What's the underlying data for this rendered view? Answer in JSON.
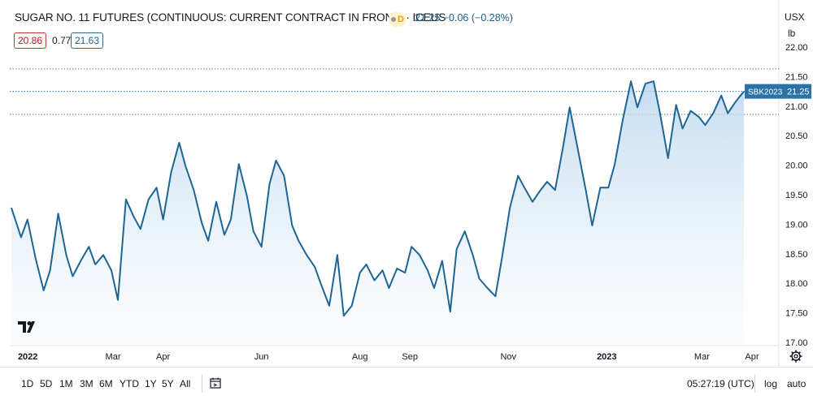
{
  "header": {
    "title": "SUGAR NO. 11 FUTURES (CONTINUOUS: CURRENT CONTRACT IN FRONT) · ICEUS",
    "interval_badge": "D",
    "quote": "21.25 −0.06 (−0.28%)",
    "bid": "20.86",
    "spread": "0.77",
    "ask": "21.63",
    "currency": "USX",
    "unit": "lb"
  },
  "toolbar": {
    "ranges": [
      "1D",
      "5D",
      "1M",
      "3M",
      "6M",
      "YTD",
      "1Y",
      "5Y",
      "All"
    ],
    "time": "05:27:19 (UTC)",
    "log_label": "log",
    "auto_label": "auto"
  },
  "colors": {
    "line": "#1f6594",
    "fill": "#cfe3f3",
    "label_bg": "#2b72a6"
  },
  "chart_data": {
    "type": "area",
    "symbol_label": "SBK2023",
    "last_price_label": "21.25",
    "x_tick_labels": [
      "2022",
      "Mar",
      "Apr",
      "Jun",
      "Aug",
      "Sep",
      "Nov",
      "2023",
      "Mar",
      "Apr"
    ],
    "y_tick_labels": [
      "17.00",
      "17.50",
      "18.00",
      "18.50",
      "19.00",
      "19.50",
      "20.00",
      "20.50",
      "21.00",
      "21.50",
      "22.00"
    ],
    "ylim": [
      17.0,
      22.0
    ],
    "reference_lines": [
      21.63,
      21.25,
      20.86
    ],
    "x": [
      "2021-12-28",
      "2022-01-03",
      "2022-01-07",
      "2022-01-12",
      "2022-01-17",
      "2022-01-21",
      "2022-01-26",
      "2022-01-31",
      "2022-02-04",
      "2022-02-09",
      "2022-02-14",
      "2022-02-18",
      "2022-02-23",
      "2022-02-28",
      "2022-03-04",
      "2022-03-09",
      "2022-03-14",
      "2022-03-18",
      "2022-03-23",
      "2022-03-28",
      "2022-04-01",
      "2022-04-06",
      "2022-04-11",
      "2022-04-15",
      "2022-04-20",
      "2022-04-25",
      "2022-04-29",
      "2022-05-04",
      "2022-05-09",
      "2022-05-13",
      "2022-05-18",
      "2022-05-23",
      "2022-05-27",
      "2022-06-01",
      "2022-06-06",
      "2022-06-10",
      "2022-06-15",
      "2022-06-20",
      "2022-06-24",
      "2022-06-29",
      "2022-07-04",
      "2022-07-08",
      "2022-07-13",
      "2022-07-18",
      "2022-07-22",
      "2022-07-27",
      "2022-08-01",
      "2022-08-05",
      "2022-08-10",
      "2022-08-15",
      "2022-08-19",
      "2022-08-24",
      "2022-08-29",
      "2022-09-02",
      "2022-09-07",
      "2022-09-12",
      "2022-09-16",
      "2022-09-21",
      "2022-09-26",
      "2022-09-30",
      "2022-10-05",
      "2022-10-10",
      "2022-10-14",
      "2022-10-19",
      "2022-10-24",
      "2022-10-28",
      "2022-11-02",
      "2022-11-07",
      "2022-11-11",
      "2022-11-16",
      "2022-11-21",
      "2022-11-25",
      "2022-11-30",
      "2022-12-05",
      "2022-12-09",
      "2022-12-14",
      "2022-12-19",
      "2022-12-23",
      "2022-12-28",
      "2023-01-02",
      "2023-01-06",
      "2023-01-11",
      "2023-01-16",
      "2023-01-20",
      "2023-01-25",
      "2023-01-30",
      "2023-02-03",
      "2023-02-08",
      "2023-02-13",
      "2023-02-17",
      "2023-02-22",
      "2023-02-27",
      "2023-03-03",
      "2023-03-08",
      "2023-03-13",
      "2023-03-17",
      "2023-03-22",
      "2023-03-27"
    ],
    "values": [
      19.28,
      18.78,
      19.08,
      18.42,
      17.88,
      18.22,
      19.18,
      18.48,
      18.12,
      18.38,
      18.62,
      18.32,
      18.48,
      18.22,
      17.72,
      19.42,
      19.12,
      18.92,
      19.42,
      19.62,
      19.08,
      19.88,
      20.38,
      19.98,
      19.58,
      19.02,
      18.72,
      19.38,
      18.82,
      19.08,
      20.02,
      19.48,
      18.88,
      18.62,
      19.68,
      20.08,
      19.82,
      18.98,
      18.72,
      18.48,
      18.28,
      17.98,
      17.62,
      18.48,
      17.45,
      17.62,
      18.18,
      18.32,
      18.05,
      18.22,
      17.92,
      18.25,
      18.18,
      18.62,
      18.48,
      18.22,
      17.92,
      18.38,
      17.52,
      18.58,
      18.88,
      18.48,
      18.08,
      17.92,
      17.78,
      18.42,
      19.28,
      19.82,
      19.62,
      19.38,
      19.58,
      19.72,
      19.58,
      20.32,
      20.98,
      20.28,
      19.58,
      18.98,
      19.62,
      19.62,
      20.02,
      20.78,
      21.42,
      20.98,
      21.38,
      21.42,
      20.88,
      20.12,
      21.02,
      20.62,
      20.92,
      20.82,
      20.68,
      20.88,
      21.18,
      20.88,
      21.08,
      21.25
    ]
  }
}
